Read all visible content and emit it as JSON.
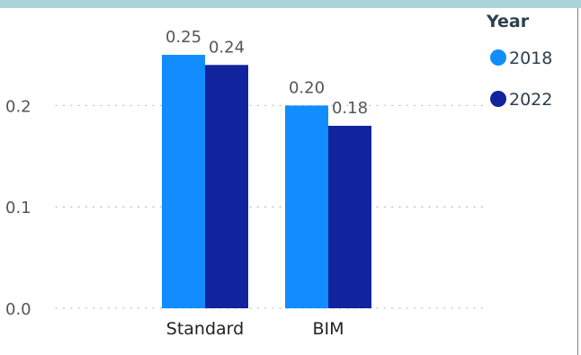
{
  "colors": {
    "series_2018": "#118dff",
    "series_2022": "#12239e",
    "grid": "#c8c8c8"
  },
  "chart_data": {
    "type": "bar",
    "categories": [
      "Standard",
      "BIM"
    ],
    "series": [
      {
        "name": "2018",
        "values": [
          0.25,
          0.2
        ],
        "labels": [
          "0.25",
          "0.20"
        ]
      },
      {
        "name": "2022",
        "values": [
          0.24,
          0.18
        ],
        "labels": [
          "0.24",
          "0.18"
        ]
      }
    ],
    "title": "",
    "xlabel": "",
    "ylabel": "",
    "ylim": [
      0,
      0.2571
    ],
    "yticks": [
      {
        "value": 0.0,
        "label": "0.0"
      },
      {
        "value": 0.1,
        "label": "0.1"
      },
      {
        "value": 0.2,
        "label": "0.2"
      }
    ],
    "grid": true,
    "legend": {
      "title": "Year",
      "position": "top-right"
    }
  }
}
